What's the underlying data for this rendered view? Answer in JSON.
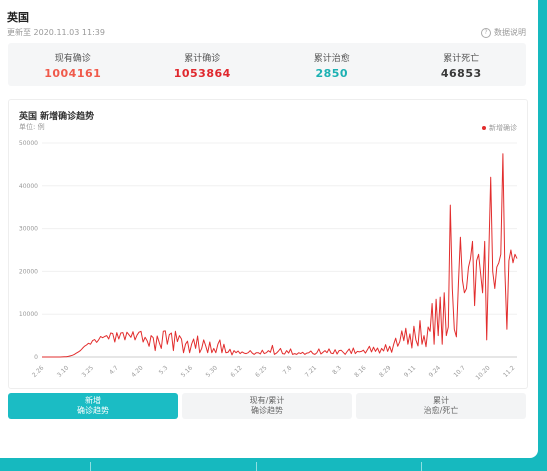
{
  "header": {
    "country": "英国",
    "updated": "更新至 2020.11.03 11:39",
    "help_label": "数据说明",
    "help_icon": "help-circle-icon"
  },
  "stats": [
    {
      "label": "现有确诊",
      "value": "1004161",
      "color": "#f05a4b"
    },
    {
      "label": "累计确诊",
      "value": "1053864",
      "color": "#e0282e"
    },
    {
      "label": "累计治愈",
      "value": "2850",
      "color": "#1cb1b3"
    },
    {
      "label": "累计死亡",
      "value": "46853",
      "color": "#3a3a3a"
    }
  ],
  "chart": {
    "title": "英国 新增确诊趋势",
    "unit": "单位: 例",
    "legend": "新增确诊",
    "color": "#e22d2d"
  },
  "chart_data": {
    "type": "line",
    "title": "英国 新增确诊趋势",
    "ylabel": "单位: 例",
    "ylim": [
      0,
      50000
    ],
    "yticks": [
      0,
      10000,
      20000,
      30000,
      40000,
      50000
    ],
    "xticks": [
      "2.26",
      "3.10",
      "3.25",
      "4.7",
      "4.20",
      "5.3",
      "5.16",
      "5.30",
      "6.12",
      "6.25",
      "7.8",
      "7.21",
      "8.3",
      "8.16",
      "8.29",
      "9.11",
      "9.24",
      "10.7",
      "10.20",
      "11.2"
    ],
    "grid": true,
    "legend_position": "top-right",
    "series": [
      {
        "name": "新增确诊",
        "values": [
          0,
          0,
          0,
          0,
          0,
          0,
          0,
          0,
          5,
          10,
          20,
          50,
          80,
          150,
          250,
          400,
          600,
          900,
          1200,
          1500,
          2000,
          2500,
          2800,
          3200,
          3000,
          3800,
          4100,
          3400,
          4000,
          4800,
          4500,
          4800,
          5000,
          4200,
          5600,
          5500,
          3500,
          5700,
          4200,
          5600,
          5700,
          4000,
          5800,
          5200,
          4600,
          5900,
          4000,
          5100,
          5800,
          6000,
          3500,
          4600,
          3800,
          2500,
          5000,
          4500,
          1500,
          4900,
          3400,
          2000,
          6000,
          6100,
          3000,
          5200,
          5600,
          1500,
          6000,
          3600,
          5000,
          4200,
          1000,
          3000,
          3700,
          1000,
          3000,
          4200,
          2000,
          4900,
          1000,
          2000,
          4000,
          2600,
          1000,
          3500,
          1000,
          2000,
          1000,
          3000,
          4000,
          1000,
          3000,
          1000,
          1100,
          1800,
          500,
          1500,
          1000,
          1400,
          800,
          1200,
          900,
          800,
          1000,
          1500,
          900,
          600,
          1000,
          1000,
          700,
          1600,
          800,
          1000,
          1500,
          1100,
          2700,
          600,
          900,
          1400,
          2000,
          800,
          700,
          1500,
          900,
          1900,
          600,
          800,
          600,
          1000,
          800,
          1100,
          600,
          900,
          1000,
          1400,
          800,
          600,
          1000,
          1900,
          700,
          1100,
          1500,
          1000,
          1900,
          900,
          800,
          1700,
          700,
          1500,
          1600,
          1100,
          600,
          1300,
          1900,
          800,
          2100,
          800,
          1300,
          1200,
          1300,
          1600,
          900,
          1700,
          2500,
          1200,
          2300,
          1300,
          2100,
          900,
          2000,
          1400,
          2900,
          1300,
          2500,
          1100,
          3000,
          4400,
          2500,
          3600,
          6100,
          3800,
          6700,
          3000,
          5400,
          2100,
          7200,
          4000,
          2600,
          8500,
          3000,
          5000,
          2400,
          7000,
          6000,
          12500,
          3000,
          13500,
          5000,
          14000,
          3000,
          15000,
          5000,
          7000,
          35500,
          16000,
          6500,
          4700,
          17000,
          28000,
          18000,
          15000,
          16000,
          21000,
          23000,
          27000,
          12000,
          22500,
          24000,
          19500,
          15000,
          27000,
          4000,
          23000,
          42000,
          20000,
          16000,
          21000,
          22000,
          24000,
          47500,
          20000,
          6500,
          22500,
          25000,
          22000,
          24000,
          23000
        ]
      }
    ]
  },
  "tabs": [
    {
      "line1": "新增",
      "line2": "确诊趋势",
      "active": true
    },
    {
      "line1": "现有/累计",
      "line2": "确诊趋势",
      "active": false
    },
    {
      "line1": "累计",
      "line2": "治愈/死亡",
      "active": false
    }
  ]
}
